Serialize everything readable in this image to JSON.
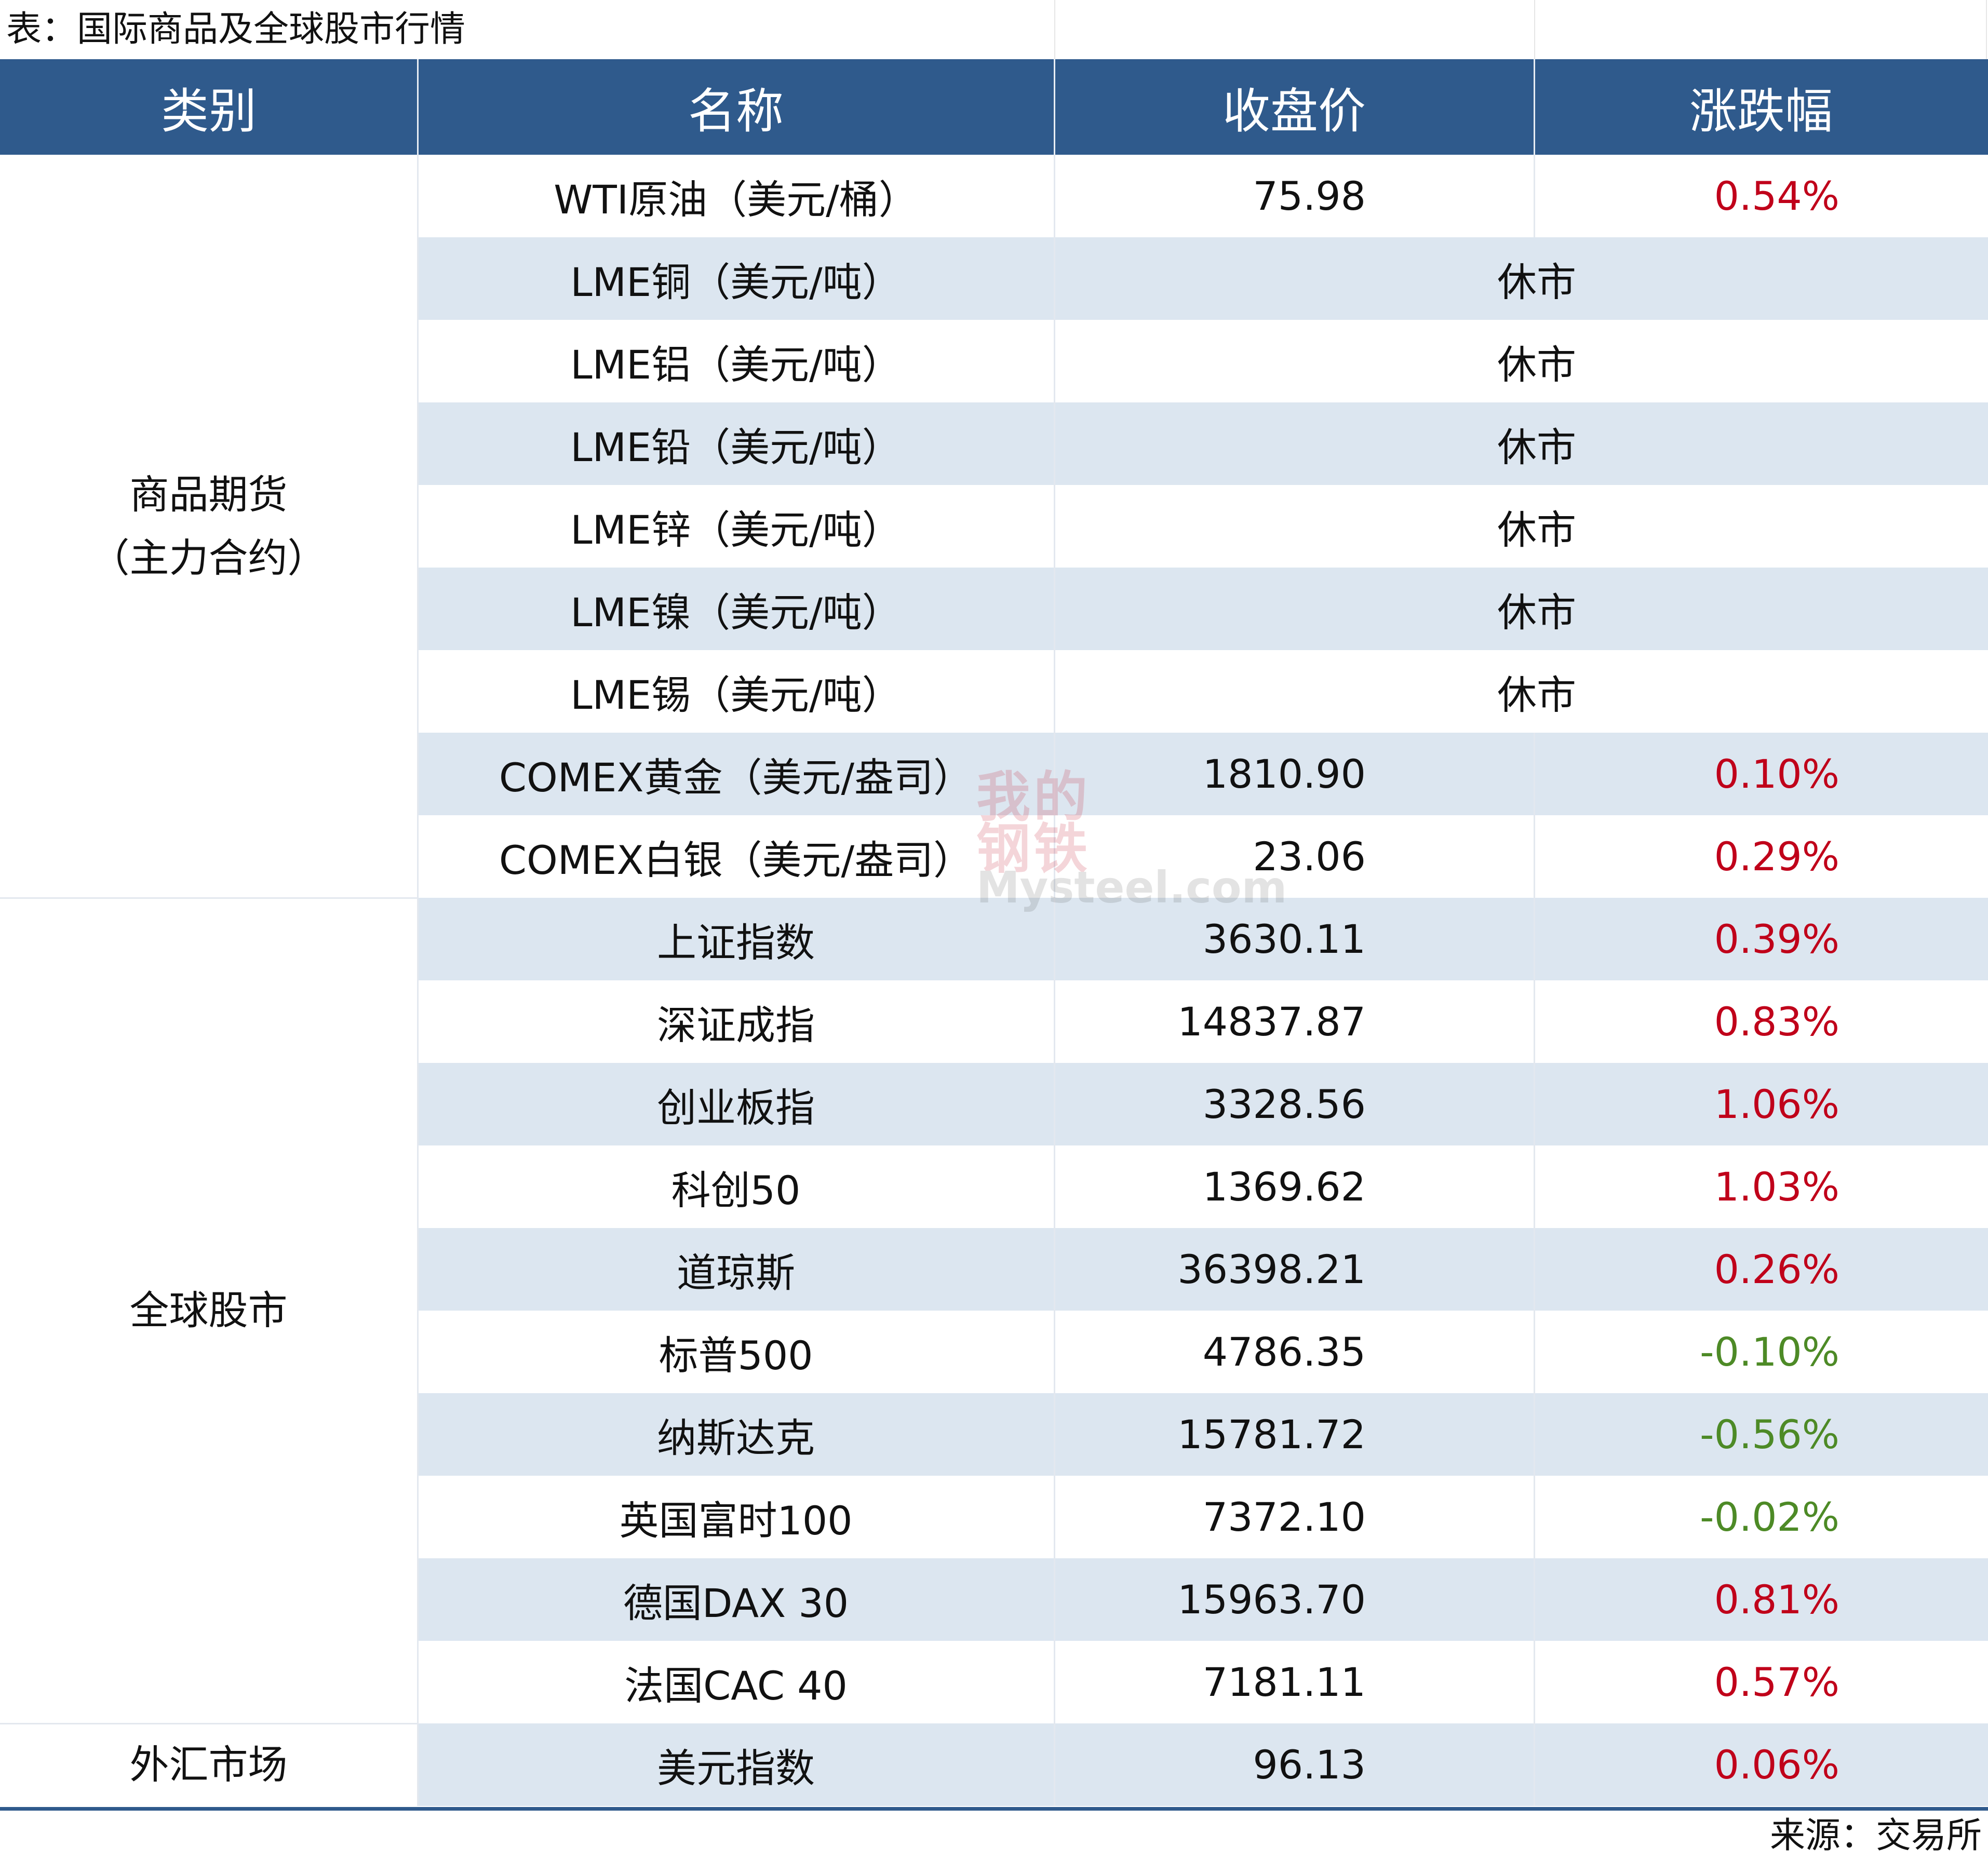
{
  "title": "表：国际商品及全球股市行情",
  "header": {
    "category": "类别",
    "name": "名称",
    "close": "收盘价",
    "change": "涨跌幅"
  },
  "groups": [
    {
      "label_line1": "商品期货",
      "label_line2": "（主力合约）"
    },
    {
      "label_line1": "全球股市",
      "label_line2": ""
    },
    {
      "label_line1": "外汇市场",
      "label_line2": ""
    }
  ],
  "rows": [
    {
      "name": "WTI原油（美元/桶）",
      "close": "75.98",
      "change": "0.54%",
      "dir": "up"
    },
    {
      "name": "LME铜（美元/吨）",
      "closed": "休市"
    },
    {
      "name": "LME铝（美元/吨）",
      "closed": "休市"
    },
    {
      "name": "LME铅（美元/吨）",
      "closed": "休市"
    },
    {
      "name": "LME锌（美元/吨）",
      "closed": "休市"
    },
    {
      "name": "LME镍（美元/吨）",
      "closed": "休市"
    },
    {
      "name": "LME锡（美元/吨）",
      "closed": "休市"
    },
    {
      "name": "COMEX黄金（美元/盎司）",
      "close": "1810.90",
      "change": "0.10%",
      "dir": "up"
    },
    {
      "name": "COMEX白银（美元/盎司）",
      "close": "23.06",
      "change": "0.29%",
      "dir": "up"
    },
    {
      "name": "上证指数",
      "close": "3630.11",
      "change": "0.39%",
      "dir": "up"
    },
    {
      "name": "深证成指",
      "close": "14837.87",
      "change": "0.83%",
      "dir": "up"
    },
    {
      "name": "创业板指",
      "close": "3328.56",
      "change": "1.06%",
      "dir": "up"
    },
    {
      "name": "科创50",
      "close": "1369.62",
      "change": "1.03%",
      "dir": "up"
    },
    {
      "name": "道琼斯",
      "close": "36398.21",
      "change": "0.26%",
      "dir": "up"
    },
    {
      "name": "标普500",
      "close": "4786.35",
      "change": "-0.10%",
      "dir": "down"
    },
    {
      "name": "纳斯达克",
      "close": "15781.72",
      "change": "-0.56%",
      "dir": "down"
    },
    {
      "name": "英国富时100",
      "close": "7372.10",
      "change": "-0.02%",
      "dir": "down"
    },
    {
      "name": "德国DAX 30",
      "close": "15963.70",
      "change": "0.81%",
      "dir": "up"
    },
    {
      "name": "法国CAC 40",
      "close": "7181.11",
      "change": "0.57%",
      "dir": "up"
    },
    {
      "name": "美元指数",
      "close": "96.13",
      "change": "0.06%",
      "dir": "up"
    }
  ],
  "colors": {
    "header_bg": "#2f5a8c",
    "row_shade": "#dce6f0",
    "up": "#c0001a",
    "down": "#4d8a26"
  },
  "watermark": {
    "cn_1": "我",
    "cn_2": "的",
    "cn_3": "钢",
    "cn_4": "铁",
    "en": "Mysteel.com"
  },
  "source": "来源：交易所"
}
